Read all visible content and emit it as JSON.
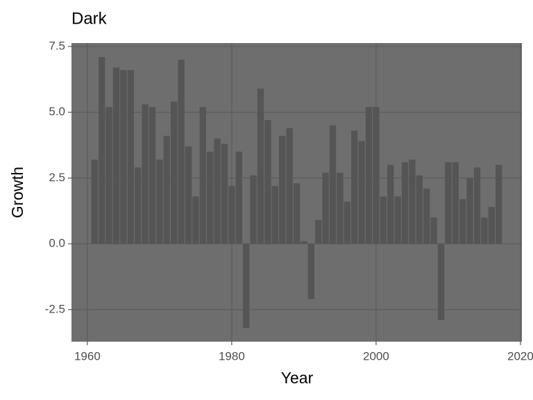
{
  "chart_data": {
    "type": "bar",
    "title": "Dark",
    "x_label": "Year",
    "y_label": "Growth",
    "x": [
      1961,
      1962,
      1963,
      1964,
      1965,
      1966,
      1967,
      1968,
      1969,
      1970,
      1971,
      1972,
      1973,
      1974,
      1975,
      1976,
      1977,
      1978,
      1979,
      1980,
      1981,
      1982,
      1983,
      1984,
      1985,
      1986,
      1987,
      1988,
      1989,
      1990,
      1991,
      1992,
      1993,
      1994,
      1995,
      1996,
      1997,
      1998,
      1999,
      2000,
      2001,
      2002,
      2003,
      2004,
      2005,
      2006,
      2007,
      2008,
      2009,
      2010,
      2011,
      2012,
      2013,
      2014,
      2015,
      2016,
      2017
    ],
    "values": [
      3.2,
      7.1,
      5.2,
      6.7,
      6.6,
      6.6,
      2.9,
      5.3,
      5.2,
      3.2,
      4.1,
      5.4,
      7.0,
      3.7,
      1.8,
      5.2,
      3.5,
      4.0,
      3.8,
      2.2,
      3.5,
      -3.2,
      2.6,
      5.9,
      4.7,
      2.2,
      4.1,
      4.4,
      2.3,
      0.1,
      -2.1,
      0.9,
      2.7,
      4.5,
      2.7,
      1.6,
      4.3,
      3.9,
      5.2,
      5.2,
      1.8,
      3.0,
      1.8,
      3.1,
      3.2,
      2.6,
      2.1,
      1.0,
      -2.9,
      3.1,
      3.1,
      1.7,
      2.5,
      2.9,
      1.0,
      1.4,
      3.0
    ],
    "color": "#555555",
    "panel_color": "#6e6e6e",
    "grid": true,
    "xlim": [
      1957.8,
      2020.2
    ],
    "xticks": [
      1960,
      1980,
      2000,
      2020
    ],
    "ylim": [
      -3.72,
      7.63
    ],
    "yticks": [
      7.5,
      {
        "value": 5,
        "label": "5.0"
      },
      2.5,
      {
        "value": 0,
        "label": "0.0"
      },
      -2.5
    ]
  }
}
